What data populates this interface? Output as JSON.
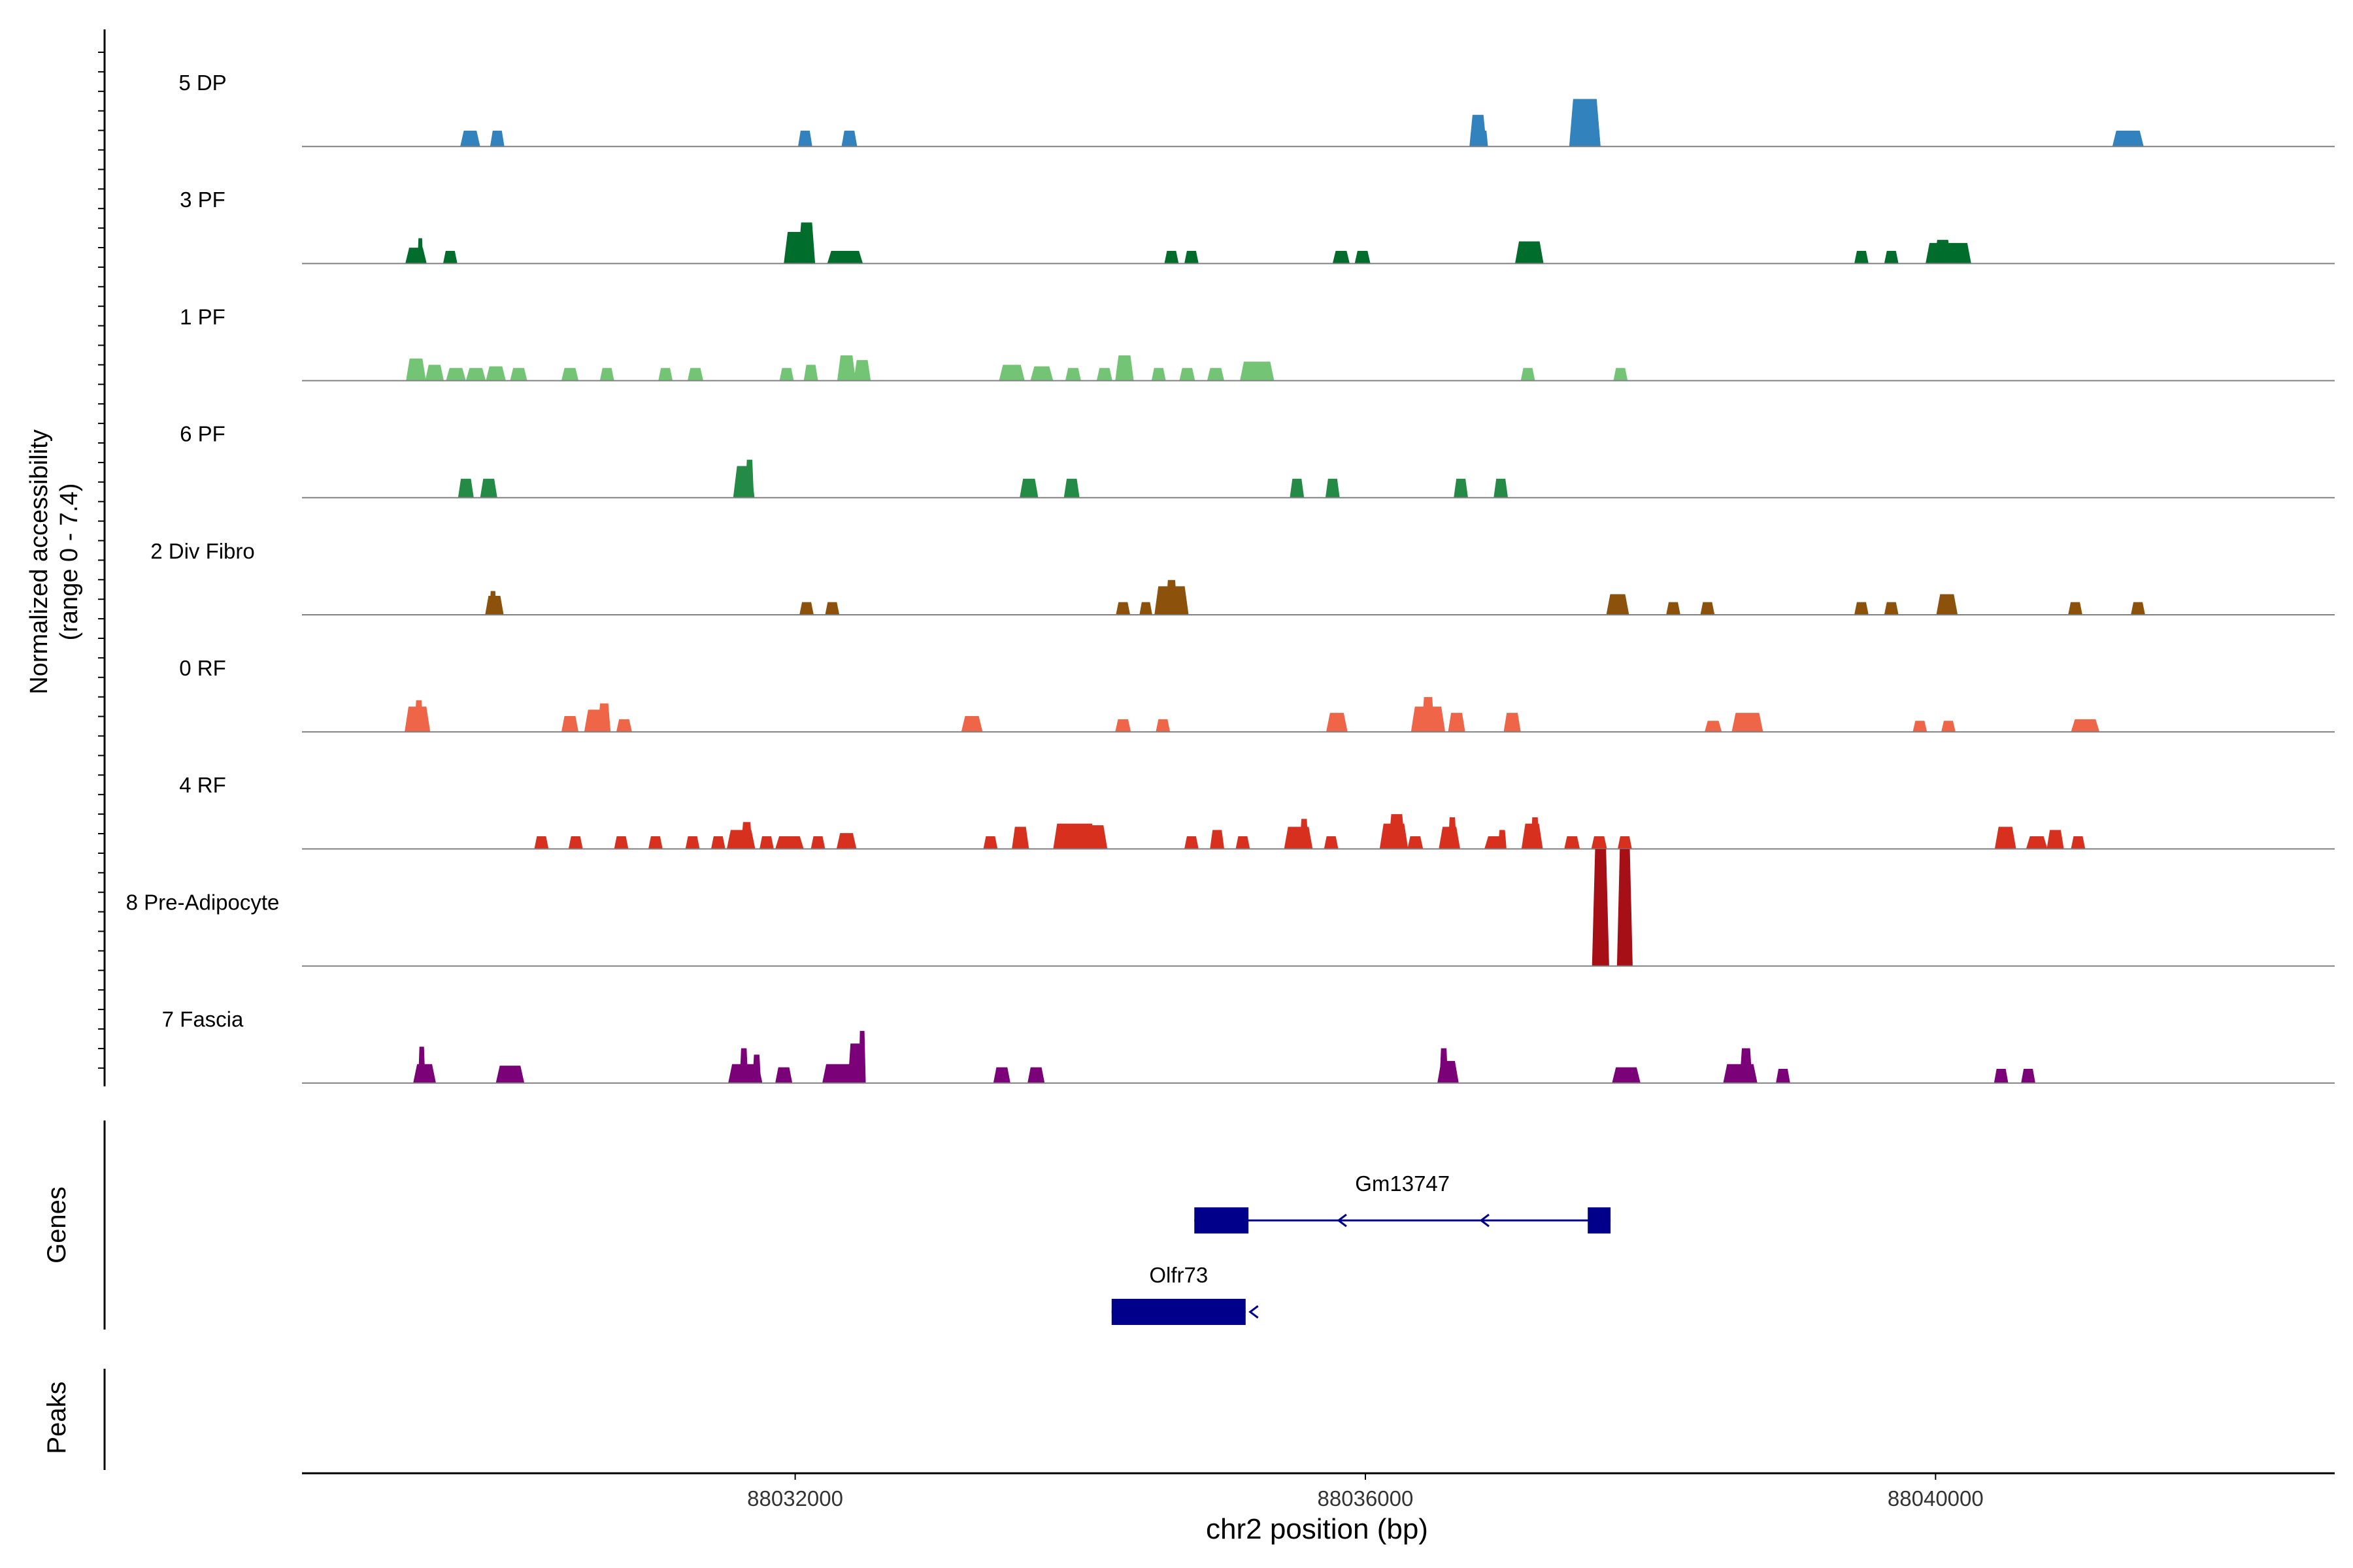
{
  "chart_data": {
    "type": "area",
    "title": "",
    "ylabel": "Normalized accessibility",
    "ylabel_range": "(range 0 - 7.4)",
    "ylim": [
      0,
      7.4
    ],
    "xlabel": "chr2 position (bp)",
    "xlim": [
      88028540,
      88042800
    ],
    "xticks": [
      88032000,
      88036000,
      88040000
    ],
    "xtick_labels": [
      "88032000",
      "88036000",
      "88040000"
    ],
    "tracks": [
      {
        "name": "5 DP",
        "color": "#3182BD",
        "peaks": [
          [
            88029720,
            140,
            1.0
          ],
          [
            88029910,
            100,
            1.0
          ],
          [
            88032070,
            100,
            1.0
          ],
          [
            88032380,
            110,
            1.0
          ],
          [
            88036790,
            120,
            2.0
          ],
          [
            88036830,
            60,
            1.0
          ],
          [
            88037540,
            220,
            3.0
          ],
          [
            88037580,
            140,
            2.6
          ],
          [
            88041350,
            220,
            1.0
          ]
        ]
      },
      {
        "name": "3 PF",
        "color": "#006D2C",
        "peaks": [
          [
            88029340,
            150,
            1.0
          ],
          [
            88029370,
            40,
            1.6
          ],
          [
            88029580,
            100,
            0.8
          ],
          [
            88032020,
            200,
            2.0
          ],
          [
            88032080,
            120,
            2.6
          ],
          [
            88032350,
            250,
            0.8
          ],
          [
            88034640,
            100,
            0.8
          ],
          [
            88034780,
            100,
            0.8
          ],
          [
            88035830,
            120,
            0.8
          ],
          [
            88035980,
            110,
            0.8
          ],
          [
            88037150,
            200,
            1.4
          ],
          [
            88039480,
            100,
            0.8
          ],
          [
            88039690,
            100,
            0.8
          ],
          [
            88040090,
            320,
            1.3
          ],
          [
            88040050,
            120,
            1.5
          ]
        ]
      },
      {
        "name": "1 PF",
        "color": "#74C476",
        "peaks": [
          [
            88029340,
            140,
            1.4
          ],
          [
            88029470,
            130,
            1.0
          ],
          [
            88029620,
            140,
            0.8
          ],
          [
            88029760,
            140,
            0.8
          ],
          [
            88029900,
            140,
            0.9
          ],
          [
            88030060,
            120,
            0.8
          ],
          [
            88030420,
            120,
            0.8
          ],
          [
            88030680,
            100,
            0.8
          ],
          [
            88031090,
            100,
            0.8
          ],
          [
            88031300,
            110,
            0.8
          ],
          [
            88031940,
            100,
            0.8
          ],
          [
            88032110,
            100,
            1.0
          ],
          [
            88032360,
            130,
            1.6
          ],
          [
            88032470,
            120,
            1.3
          ],
          [
            88033520,
            180,
            1.0
          ],
          [
            88033730,
            160,
            0.9
          ],
          [
            88033950,
            110,
            0.8
          ],
          [
            88034170,
            110,
            0.8
          ],
          [
            88034310,
            130,
            1.6
          ],
          [
            88034550,
            100,
            0.8
          ],
          [
            88034750,
            110,
            0.8
          ],
          [
            88034950,
            120,
            0.8
          ],
          [
            88035240,
            240,
            1.2
          ],
          [
            88037140,
            100,
            0.8
          ],
          [
            88037790,
            100,
            0.8
          ]
        ]
      },
      {
        "name": "6 PF",
        "color": "#238B45",
        "peaks": [
          [
            88029690,
            110,
            1.2
          ],
          [
            88029850,
            120,
            1.2
          ],
          [
            88031640,
            150,
            2.0
          ],
          [
            88031680,
            60,
            2.4
          ],
          [
            88033640,
            130,
            1.2
          ],
          [
            88033940,
            110,
            1.2
          ],
          [
            88035520,
            100,
            1.2
          ],
          [
            88035770,
            100,
            1.2
          ],
          [
            88036670,
            100,
            1.2
          ],
          [
            88036950,
            100,
            1.2
          ]
        ]
      },
      {
        "name": "2 Div Fibro",
        "color": "#8C510A",
        "peaks": [
          [
            88029890,
            130,
            1.2
          ],
          [
            88029880,
            50,
            1.5
          ],
          [
            88032080,
            100,
            0.8
          ],
          [
            88032260,
            100,
            0.8
          ],
          [
            88034300,
            100,
            0.8
          ],
          [
            88034460,
            90,
            0.8
          ],
          [
            88034640,
            240,
            1.8
          ],
          [
            88034640,
            80,
            2.2
          ],
          [
            88037770,
            160,
            1.3
          ],
          [
            88038160,
            100,
            0.8
          ],
          [
            88038400,
            100,
            0.8
          ],
          [
            88039480,
            100,
            0.8
          ],
          [
            88039690,
            100,
            0.8
          ],
          [
            88040080,
            150,
            1.3
          ],
          [
            88040980,
            100,
            0.8
          ],
          [
            88041420,
            100,
            0.8
          ]
        ]
      },
      {
        "name": "0 RF",
        "color": "#EF6548",
        "peaks": [
          [
            88029350,
            180,
            1.6
          ],
          [
            88029360,
            60,
            2.0
          ],
          [
            88030420,
            120,
            1.0
          ],
          [
            88030600,
            160,
            1.4
          ],
          [
            88030660,
            90,
            1.8
          ],
          [
            88030800,
            110,
            0.8
          ],
          [
            88033240,
            150,
            1.0
          ],
          [
            88034300,
            110,
            0.8
          ],
          [
            88034580,
            100,
            0.8
          ],
          [
            88035800,
            150,
            1.2
          ],
          [
            88036440,
            240,
            1.6
          ],
          [
            88036440,
            90,
            2.2
          ],
          [
            88036640,
            120,
            1.2
          ],
          [
            88037030,
            120,
            1.2
          ],
          [
            88038440,
            120,
            0.7
          ],
          [
            88038680,
            220,
            1.2
          ],
          [
            88039890,
            100,
            0.7
          ],
          [
            88040090,
            100,
            0.7
          ],
          [
            88041050,
            200,
            0.8
          ]
        ]
      },
      {
        "name": "4 RF",
        "color": "#D7301F",
        "peaks": [
          [
            88030220,
            100,
            0.8
          ],
          [
            88030460,
            100,
            0.8
          ],
          [
            88030780,
            100,
            0.8
          ],
          [
            88031020,
            100,
            0.8
          ],
          [
            88031280,
            100,
            0.8
          ],
          [
            88031460,
            100,
            0.8
          ],
          [
            88031620,
            200,
            1.2
          ],
          [
            88031660,
            80,
            1.7
          ],
          [
            88031800,
            100,
            0.8
          ],
          [
            88031960,
            200,
            0.8
          ],
          [
            88032160,
            100,
            0.8
          ],
          [
            88032360,
            140,
            1.0
          ],
          [
            88033370,
            100,
            0.8
          ],
          [
            88033580,
            120,
            1.4
          ],
          [
            88033960,
            300,
            1.6
          ],
          [
            88034100,
            180,
            1.5
          ],
          [
            88034780,
            100,
            0.8
          ],
          [
            88034960,
            100,
            1.2
          ],
          [
            88035140,
            100,
            0.8
          ],
          [
            88035530,
            200,
            1.4
          ],
          [
            88035570,
            60,
            1.9
          ],
          [
            88035760,
            100,
            0.8
          ],
          [
            88036200,
            200,
            1.6
          ],
          [
            88036220,
            120,
            2.2
          ],
          [
            88036350,
            110,
            0.8
          ],
          [
            88036590,
            150,
            1.4
          ],
          [
            88036610,
            60,
            2.0
          ],
          [
            88036910,
            150,
            0.8
          ],
          [
            88036960,
            60,
            1.2
          ],
          [
            88037170,
            150,
            1.6
          ],
          [
            88037190,
            60,
            2.0
          ],
          [
            88037450,
            110,
            0.8
          ],
          [
            88037640,
            110,
            0.8
          ],
          [
            88037820,
            100,
            0.8
          ],
          [
            88040490,
            150,
            1.4
          ],
          [
            88040710,
            150,
            0.8
          ],
          [
            88040840,
            120,
            1.2
          ],
          [
            88041000,
            100,
            0.8
          ]
        ]
      },
      {
        "name": "8 Pre-Adipocyte",
        "color": "#A50F15",
        "peaks": [
          [
            88037650,
            120,
            7.4
          ],
          [
            88037820,
            110,
            7.4
          ]
        ]
      },
      {
        "name": "7 Fascia",
        "color": "#7A0177",
        "peaks": [
          [
            88029400,
            160,
            1.2
          ],
          [
            88029380,
            50,
            2.3
          ],
          [
            88030000,
            200,
            1.1
          ],
          [
            88031650,
            240,
            1.2
          ],
          [
            88031640,
            60,
            2.2
          ],
          [
            88031730,
            60,
            1.8
          ],
          [
            88031920,
            120,
            1.0
          ],
          [
            88032310,
            240,
            1.2
          ],
          [
            88032420,
            100,
            2.5
          ],
          [
            88032470,
            50,
            3.3
          ],
          [
            88033450,
            120,
            1.0
          ],
          [
            88033690,
            120,
            1.0
          ],
          [
            88036580,
            150,
            1.4
          ],
          [
            88036550,
            60,
            2.2
          ],
          [
            88037830,
            200,
            1.0
          ],
          [
            88038630,
            240,
            1.2
          ],
          [
            88038670,
            90,
            2.2
          ],
          [
            88038930,
            100,
            0.9
          ],
          [
            88040460,
            100,
            0.9
          ],
          [
            88040650,
            100,
            0.9
          ]
        ]
      }
    ],
    "genes": [
      {
        "name": "Gm13747",
        "strand": "-",
        "start": 88034800,
        "end": 88037720,
        "exons": [
          [
            88034800,
            88035180
          ],
          [
            88037560,
            88037720
          ]
        ],
        "arrows": [
          88035830,
          88036830
        ]
      },
      {
        "name": "Olfr73",
        "strand": "-",
        "start": 88034220,
        "end": 88035160,
        "exons": [
          [
            88034220,
            88035160
          ]
        ],
        "arrows": [
          88035210
        ]
      }
    ],
    "panels": {
      "genes": "Genes",
      "peaks": "Peaks"
    },
    "colors": {
      "axis": "#000000",
      "baseline": "#808080",
      "gene": "#00008B"
    }
  }
}
